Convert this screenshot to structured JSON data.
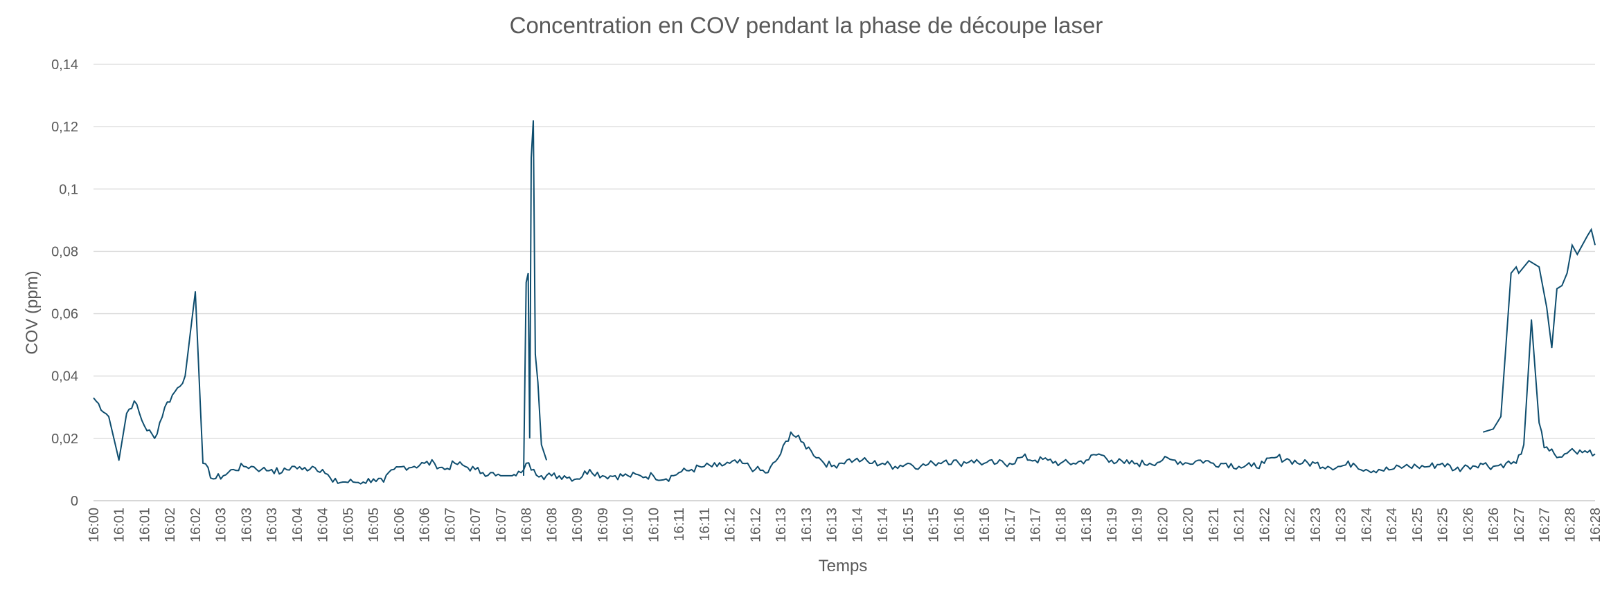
{
  "chart_data": {
    "type": "line",
    "title": "Concentration en COV pendant la phase de découpe laser",
    "xlabel": "Temps",
    "ylabel": "COV (ppm)",
    "ylim": [
      0,
      0.14
    ],
    "yticks": [
      "0",
      "0,02",
      "0,04",
      "0,06",
      "0,08",
      "0,1",
      "0,12",
      "0,14"
    ],
    "ytick_values": [
      0,
      0.02,
      0.04,
      0.06,
      0.08,
      0.1,
      0.12,
      0.14
    ],
    "xtick_labels": [
      "16:00",
      "16:01",
      "16:01",
      "16:02",
      "16:02",
      "16:03",
      "16:03",
      "16:03",
      "16:04",
      "16:04",
      "16:05",
      "16:05",
      "16:06",
      "16:06",
      "16:07",
      "16:07",
      "16:07",
      "16:08",
      "16:08",
      "16:09",
      "16:09",
      "16:10",
      "16:10",
      "16:11",
      "16:11",
      "16:12",
      "16:12",
      "16:13",
      "16:13",
      "16:13",
      "16:14",
      "16:14",
      "16:15",
      "16:15",
      "16:16",
      "16:16",
      "16:17",
      "16:17",
      "16:18",
      "16:18",
      "16:19",
      "16:19",
      "16:20",
      "16:20",
      "16:21",
      "16:21",
      "16:22",
      "16:22",
      "16:23",
      "16:23",
      "16:24",
      "16:24",
      "16:25",
      "16:25",
      "16:26",
      "16:26",
      "16:27",
      "16:27",
      "16:28",
      "16:28"
    ],
    "grid": true,
    "legend": "none",
    "line_color": "#0e4d6e",
    "series": [
      {
        "x": [
          0,
          0.6,
          1,
          1.3,
          1.6,
          2,
          2.4,
          2.8,
          3.2,
          3.6,
          4,
          4.3,
          4.7,
          5.1,
          5.5,
          5.9,
          6.2,
          6.6,
          7,
          7.4,
          7.8,
          8.2,
          8.6,
          9,
          9.4,
          9.8,
          10.2,
          10.6,
          11,
          11.4,
          11.8,
          12.2,
          12.6,
          13,
          13.4,
          13.8,
          14.2,
          14.6,
          15,
          15.3,
          15.6,
          15.8,
          16,
          16.15,
          16.25,
          16.35,
          16.45,
          16.6,
          16.8,
          17,
          17.3,
          17.6,
          18,
          18.5,
          19,
          19.5,
          20,
          20.5,
          21,
          21.5,
          22,
          22.5,
          23,
          23.5,
          24,
          24.5,
          25,
          25.5,
          26,
          26.5,
          27,
          27.4,
          27.8,
          28.2,
          28.6,
          29,
          29.3,
          29.6,
          29.9,
          30.2,
          30.6,
          31,
          31.5,
          32,
          32.5,
          33,
          33.5,
          34,
          34.5,
          35,
          35.5,
          36,
          36.5,
          37,
          37.5,
          38,
          38.5,
          39,
          39.5,
          40,
          40.5,
          41,
          41.5,
          42,
          42.5,
          43,
          43.5,
          44,
          44.5,
          45,
          45.5,
          46,
          46.5,
          47,
          47.5,
          48,
          48.5,
          49,
          49.5,
          50,
          50.5,
          51,
          51.5,
          52,
          52.5,
          53,
          53.5,
          54,
          54.5,
          55,
          55.5,
          55.9,
          56.2,
          56.5,
          56.8,
          57,
          57.2,
          57.4,
          57.6,
          57.8,
          58,
          58.3,
          58.6,
          59
        ],
        "values": [
          0.033,
          0.027,
          0.013,
          0.028,
          0.032,
          0.024,
          0.02,
          0.03,
          0.035,
          0.04,
          0.067,
          0.012,
          0.007,
          0.008,
          0.01,
          0.011,
          0.011,
          0.01,
          0.01,
          0.009,
          0.011,
          0.01,
          0.011,
          0.01,
          0.006,
          0.006,
          0.006,
          0.006,
          0.007,
          0.006,
          0.01,
          0.011,
          0.011,
          0.012,
          0.012,
          0.01,
          0.012,
          0.011,
          0.01,
          0.009,
          0.009,
          0.008,
          0.008,
          0.008,
          0.008,
          0.008,
          0.008,
          0.008,
          0.009,
          0.012,
          0.01,
          0.008,
          0.008,
          0.008,
          0.007,
          0.01,
          0.008,
          0.008,
          0.008,
          0.008,
          0.008,
          0.007,
          0.009,
          0.01,
          0.011,
          0.011,
          0.012,
          0.012,
          0.01,
          0.009,
          0.015,
          0.022,
          0.019,
          0.016,
          0.013,
          0.011,
          0.012,
          0.013,
          0.013,
          0.013,
          0.012,
          0.012,
          0.011,
          0.012,
          0.011,
          0.012,
          0.013,
          0.012,
          0.013,
          0.012,
          0.012,
          0.012,
          0.014,
          0.013,
          0.013,
          0.012,
          0.012,
          0.013,
          0.015,
          0.013,
          0.012,
          0.012,
          0.012,
          0.013,
          0.013,
          0.012,
          0.013,
          0.012,
          0.012,
          0.011,
          0.011,
          0.012,
          0.014,
          0.013,
          0.012,
          0.012,
          0.011,
          0.011,
          0.012,
          0.01,
          0.01,
          0.01,
          0.011,
          0.011,
          0.011,
          0.012,
          0.01,
          0.011,
          0.012,
          0.011,
          0.012,
          0.012,
          0.018,
          0.058,
          0.025,
          0.017,
          0.016,
          0.015,
          0.014,
          0.015,
          0.016,
          0.015,
          0.016,
          0.015
        ],
        "note_x_unit": "minutes"
      }
    ]
  }
}
